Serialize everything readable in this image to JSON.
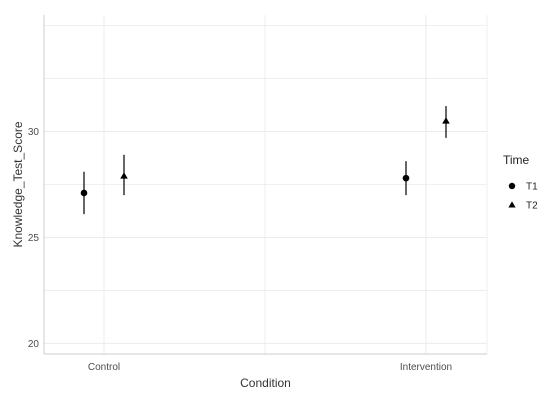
{
  "chart_data": {
    "type": "scatter",
    "xlabel": "Condition",
    "ylabel": "Knowledge_Test_Score",
    "categories": [
      "Control",
      "Intervention"
    ],
    "ylim": [
      19.5,
      35.5
    ],
    "y_ticks": [
      20,
      25,
      30
    ],
    "y_tick_labels": [
      "20",
      "25",
      "30"
    ],
    "grid": true,
    "legend": {
      "title": "Time",
      "placement": "right"
    },
    "series": [
      {
        "name": "T1",
        "shape": "circle",
        "points": [
          {
            "x": "Control",
            "y": 27.1,
            "ymin": 26.1,
            "ymax": 28.1
          },
          {
            "x": "Intervention",
            "y": 27.8,
            "ymin": 27.0,
            "ymax": 28.6
          }
        ]
      },
      {
        "name": "T2",
        "shape": "triangle",
        "points": [
          {
            "x": "Control",
            "y": 27.9,
            "ymin": 27.0,
            "ymax": 28.9
          },
          {
            "x": "Intervention",
            "y": 30.5,
            "ymin": 29.7,
            "ymax": 31.2
          }
        ]
      }
    ],
    "colors": {
      "points": "#000000",
      "grid": "#ebebeb",
      "axis": "#cccccc"
    }
  }
}
